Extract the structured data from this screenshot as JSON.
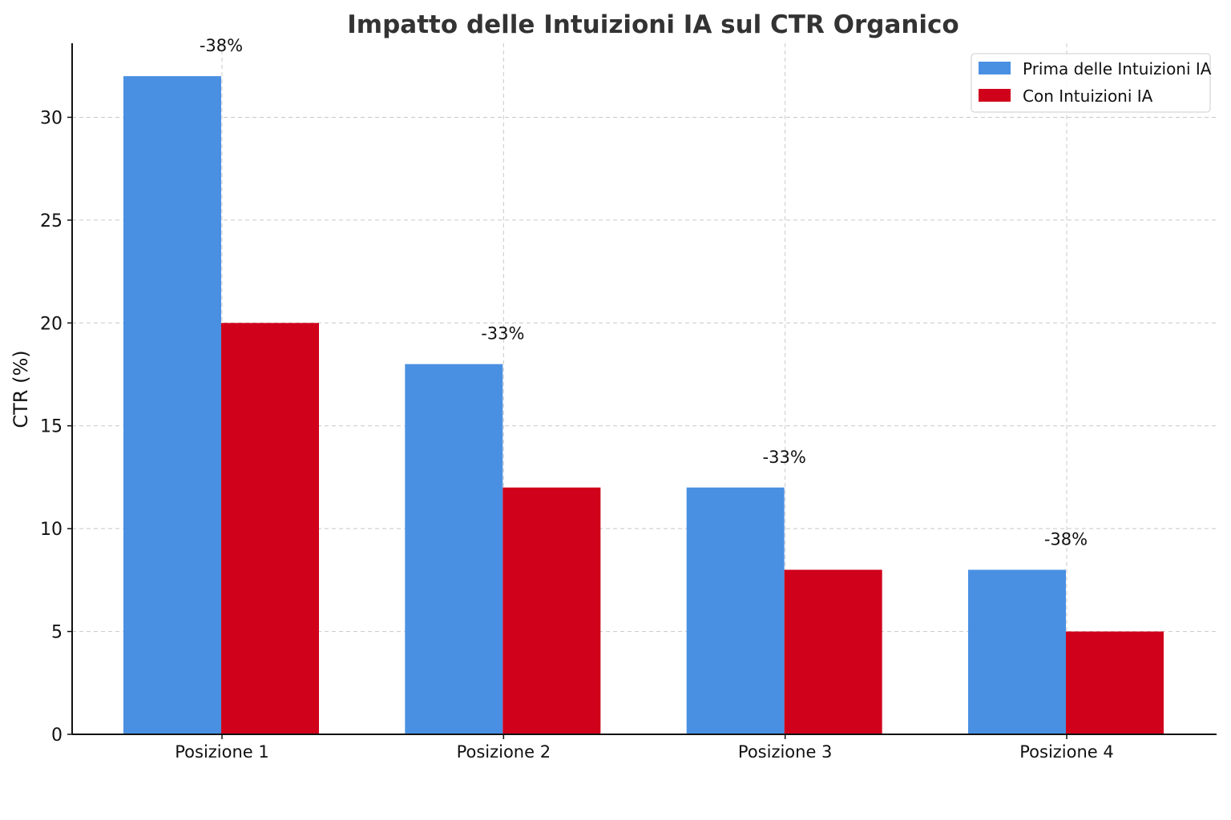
{
  "chart_data": {
    "type": "bar",
    "title": "Impatto delle Intuizioni IA sul CTR Organico",
    "xlabel": "",
    "ylabel": "CTR (%)",
    "categories": [
      "Posizione 1",
      "Posizione 2",
      "Posizione 3",
      "Posizione 4"
    ],
    "series": [
      {
        "name": "Prima delle Intuizioni IA",
        "values": [
          32,
          18,
          12,
          8
        ],
        "color": "#4a90e2"
      },
      {
        "name": "Con Intuizioni IA",
        "values": [
          20,
          12,
          8,
          5
        ],
        "color": "#d0021b"
      }
    ],
    "annotations": [
      "-38%",
      "-33%",
      "-33%",
      "-38%"
    ],
    "ylim": [
      0,
      33.6
    ],
    "yticks": [
      0,
      5,
      10,
      15,
      20,
      25,
      30
    ],
    "grid": true,
    "legend_position": "top-right"
  }
}
